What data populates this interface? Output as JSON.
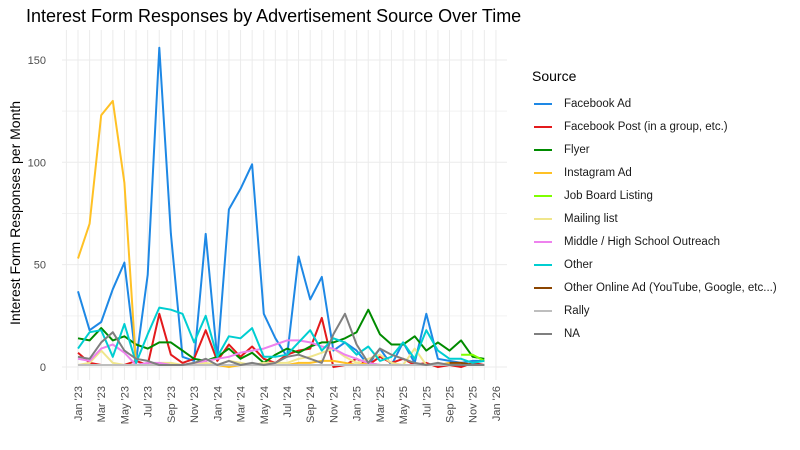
{
  "chart_data": {
    "type": "line",
    "title": "Interest Form Responses by Advertisement Source Over Time",
    "xlabel": "",
    "ylabel": "Interest Form Responses per  Month",
    "ylim": [
      0,
      157
    ],
    "yticks": [
      0,
      50,
      100,
      150
    ],
    "grid": true,
    "legend_title": "Source",
    "legend_position": "right",
    "x": [
      "Jan '23",
      "Feb '23",
      "Mar '23",
      "Apr '23",
      "May '23",
      "Jun '23",
      "Jul '23",
      "Aug '23",
      "Sep '23",
      "Oct '23",
      "Nov '23",
      "Dec '23",
      "Jan '24",
      "Feb '24",
      "Mar '24",
      "Apr '24",
      "May '24",
      "Jun '24",
      "Jul '24",
      "Aug '24",
      "Sep '24",
      "Oct '24",
      "Nov '24",
      "Dec '24",
      "Jan '25",
      "Feb '25",
      "Mar '25",
      "Apr '25",
      "May '25",
      "Jun '25",
      "Jul '25",
      "Aug '25",
      "Sep '25",
      "Oct '25",
      "Nov '25",
      "Dec '25"
    ],
    "xticks": [
      "Jan '23",
      "Mar '23",
      "May '23",
      "Jul '23",
      "Sep '23",
      "Nov '23",
      "Jan '24",
      "Mar '24",
      "May '24",
      "Jul '24",
      "Sep '24",
      "Nov '24",
      "Jan '25",
      "Mar '25",
      "May '25",
      "Jul '25",
      "Sep '25",
      "Nov '25",
      "Jan '26"
    ],
    "series": [
      {
        "name": "Facebook Ad",
        "color": "#1E88E5",
        "values": [
          37,
          18,
          22,
          38,
          51,
          3,
          45,
          156,
          65,
          5,
          3,
          65,
          4,
          77,
          87,
          99,
          26,
          14,
          5,
          54,
          33,
          44,
          8,
          12,
          8,
          1,
          9,
          1,
          12,
          2,
          26,
          4,
          3,
          2,
          3,
          3
        ]
      },
      {
        "name": "Facebook Post (in a group, etc.)",
        "color": "#E31A1C",
        "values": [
          7,
          2,
          1,
          1,
          1,
          3,
          1,
          26,
          6,
          2,
          4,
          18,
          3,
          11,
          5,
          10,
          4,
          2,
          6,
          8,
          9,
          24,
          0,
          1,
          4,
          1,
          5,
          2,
          4,
          1,
          2,
          0,
          1,
          0,
          2,
          1
        ]
      },
      {
        "name": "Flyer",
        "color": "#008B00",
        "values": [
          14,
          13,
          19,
          13,
          15,
          11,
          9,
          12,
          12,
          8,
          4,
          3,
          5,
          9,
          4,
          7,
          2,
          6,
          9,
          7,
          10,
          12,
          12,
          14,
          17,
          28,
          16,
          11,
          11,
          15,
          8,
          12,
          8,
          13,
          5,
          4
        ]
      },
      {
        "name": "Instagram Ad",
        "color": "#FFC125",
        "values": [
          53,
          70,
          123,
          130,
          90,
          1,
          1,
          1,
          1,
          1,
          1,
          1,
          1,
          0,
          1,
          1,
          1,
          1,
          1,
          2,
          2,
          3,
          3,
          2,
          1,
          2,
          1,
          1,
          1,
          1,
          1,
          1,
          2,
          1,
          1,
          1
        ]
      },
      {
        "name": "Job Board Listing",
        "color": "#7FFF00",
        "values": [
          null,
          null,
          null,
          null,
          null,
          null,
          null,
          null,
          null,
          null,
          null,
          null,
          null,
          null,
          null,
          null,
          null,
          null,
          null,
          null,
          null,
          null,
          null,
          null,
          null,
          null,
          null,
          null,
          null,
          null,
          null,
          null,
          null,
          6,
          6,
          3
        ]
      },
      {
        "name": "Mailing list",
        "color": "#F0E68C",
        "values": [
          1,
          2,
          8,
          2,
          1,
          1,
          1,
          2,
          2,
          1,
          1,
          2,
          1,
          3,
          2,
          1,
          2,
          2,
          2,
          4,
          5,
          7,
          9,
          5,
          2,
          4,
          6,
          2,
          1,
          9,
          1,
          1,
          1,
          2,
          1,
          1
        ]
      },
      {
        "name": "Middle / High School Outreach",
        "color": "#EE82EE",
        "values": [
          4,
          3,
          9,
          11,
          7,
          1,
          2,
          2,
          1,
          1,
          2,
          3,
          4,
          5,
          7,
          8,
          9,
          11,
          13,
          13,
          12,
          10,
          9,
          6,
          4,
          2,
          1,
          null,
          null,
          null,
          null,
          null,
          null,
          null,
          null,
          null
        ]
      },
      {
        "name": "Other",
        "color": "#00CED1",
        "values": [
          9,
          17,
          18,
          5,
          21,
          2,
          16,
          29,
          28,
          26,
          12,
          25,
          5,
          15,
          14,
          19,
          5,
          5,
          6,
          12,
          18,
          8,
          14,
          12,
          6,
          10,
          3,
          5,
          12,
          4,
          18,
          8,
          4,
          4,
          2,
          3
        ]
      },
      {
        "name": "Other Online Ad (YouTube, Google, etc...)",
        "color": "#8B4500",
        "values": [
          null,
          null,
          null,
          null,
          null,
          null,
          null,
          null,
          null,
          null,
          null,
          null,
          null,
          null,
          null,
          null,
          null,
          null,
          null,
          null,
          null,
          null,
          null,
          null,
          null,
          null,
          null,
          null,
          null,
          null,
          null,
          null,
          2,
          2,
          1,
          1
        ]
      },
      {
        "name": "Rally",
        "color": "#BEBEBE",
        "values": [
          1,
          1,
          1,
          1,
          1,
          1,
          1,
          1,
          1,
          1,
          1,
          1,
          1,
          1,
          1,
          1,
          1,
          1,
          1,
          1,
          1,
          1,
          1,
          1,
          1,
          1,
          1,
          1,
          1,
          1,
          1,
          1,
          1,
          1,
          1,
          1
        ]
      },
      {
        "name": "NA",
        "color": "#7F7F7F",
        "values": [
          5,
          4,
          12,
          17,
          8,
          4,
          3,
          1,
          1,
          1,
          2,
          4,
          1,
          3,
          1,
          2,
          1,
          2,
          5,
          6,
          4,
          2,
          16,
          26,
          11,
          2,
          9,
          6,
          4,
          2,
          1,
          2,
          1,
          1,
          1,
          1
        ]
      }
    ]
  }
}
